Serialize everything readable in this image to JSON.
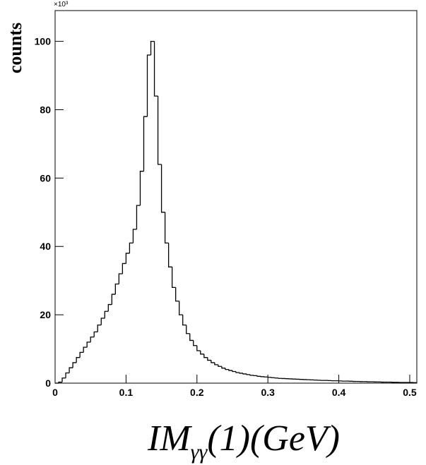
{
  "chart_data": {
    "type": "histogram",
    "y_label": "counts",
    "y_multiplier": "×10³",
    "x_label": {
      "main": "IM",
      "sub": "γγ",
      "rest": "(1)(GeV)"
    },
    "xlim": [
      0,
      0.51
    ],
    "ylim": [
      0,
      109
    ],
    "xticks": [
      0,
      0.1,
      0.2,
      0.3,
      0.4,
      0.5
    ],
    "yticks": [
      0,
      20,
      40,
      60,
      80,
      100
    ],
    "color": "#000000",
    "bins": [
      0,
      0.005,
      0.01,
      0.015,
      0.02,
      0.025,
      0.03,
      0.035,
      0.04,
      0.045,
      0.05,
      0.055,
      0.06,
      0.065,
      0.07,
      0.075,
      0.08,
      0.085,
      0.09,
      0.095,
      0.1,
      0.105,
      0.11,
      0.115,
      0.12,
      0.125,
      0.13,
      0.135,
      0.14,
      0.145,
      0.15,
      0.155,
      0.16,
      0.165,
      0.17,
      0.175,
      0.18,
      0.185,
      0.19,
      0.195,
      0.2,
      0.205,
      0.21,
      0.215,
      0.22,
      0.225,
      0.23,
      0.235,
      0.24,
      0.245,
      0.25,
      0.255,
      0.26,
      0.265,
      0.27,
      0.275,
      0.28,
      0.285,
      0.29,
      0.295,
      0.3,
      0.305,
      0.31,
      0.315,
      0.32,
      0.325,
      0.33,
      0.335,
      0.34,
      0.345,
      0.35,
      0.355,
      0.36,
      0.365,
      0.37,
      0.375,
      0.38,
      0.385,
      0.39,
      0.395,
      0.4,
      0.405,
      0.41,
      0.415,
      0.42,
      0.425,
      0.43,
      0.435,
      0.44,
      0.445,
      0.45,
      0.455,
      0.46,
      0.465,
      0.47,
      0.475,
      0.48,
      0.485,
      0.49,
      0.495,
      0.5,
      0.505,
      0.51
    ],
    "values": [
      0,
      0.3,
      1.5,
      3,
      4.5,
      6,
      7.5,
      9,
      10.5,
      12,
      13.5,
      15,
      17,
      19,
      21,
      23,
      26,
      29,
      32,
      35,
      38,
      41,
      45,
      52,
      62,
      78,
      96,
      100,
      84,
      64,
      50,
      41,
      34,
      28,
      24,
      20,
      17,
      14.5,
      12.5,
      11,
      9.5,
      8.5,
      7.5,
      6.7,
      6,
      5.4,
      4.9,
      4.4,
      4,
      3.7,
      3.4,
      3.1,
      2.9,
      2.7,
      2.5,
      2.3,
      2.2,
      2,
      1.9,
      1.8,
      1.7,
      1.6,
      1.5,
      1.4,
      1.35,
      1.3,
      1.25,
      1.2,
      1.15,
      1.1,
      1.05,
      1,
      0.95,
      0.9,
      0.85,
      0.8,
      0.8,
      0.75,
      0.7,
      0.7,
      0.65,
      0.6,
      0.6,
      0.55,
      0.5,
      0.5,
      0.45,
      0.45,
      0.4,
      0.4,
      0.35,
      0.35,
      0.3,
      0.3,
      0.3,
      0.25,
      0.25,
      0.2,
      0.2,
      0.2,
      0.2,
      0.15
    ]
  }
}
